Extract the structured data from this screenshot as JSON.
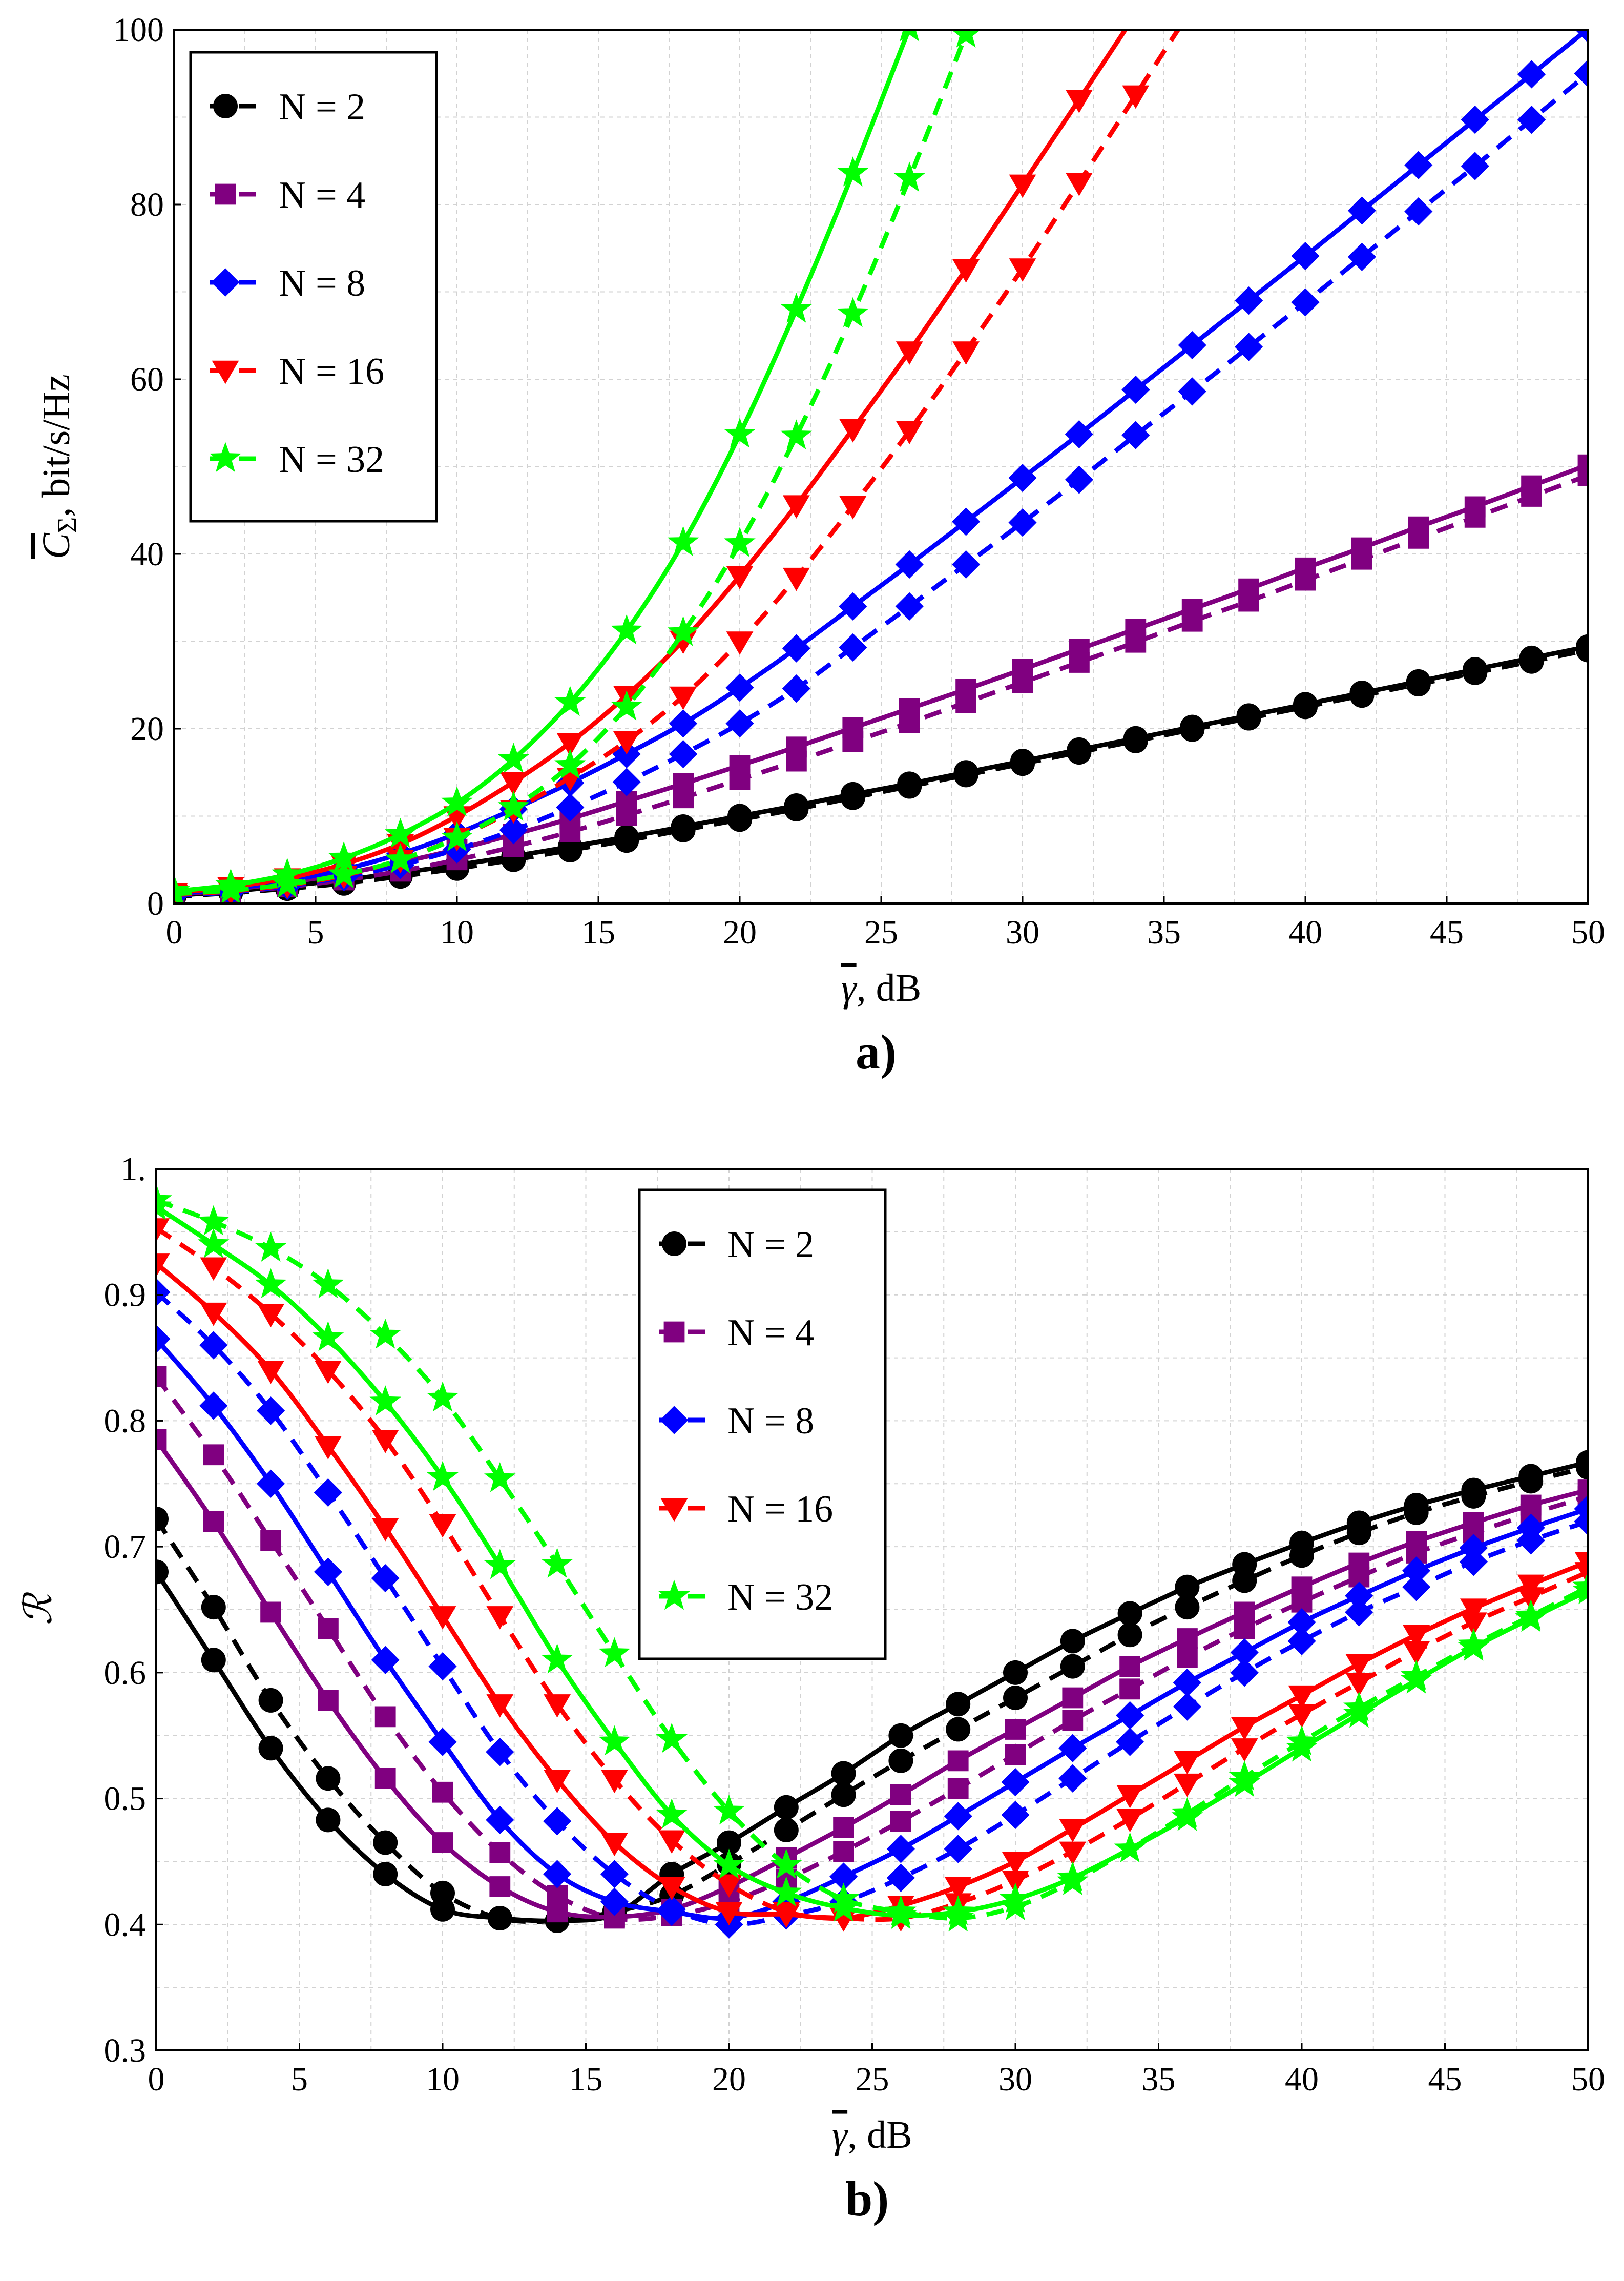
{
  "colors": {
    "N2": "#000000",
    "N4": "#800080",
    "N8": "#0000ff",
    "N16": "#ff0000",
    "N32": "#00ff00"
  },
  "chart_data": [
    {
      "type": "line",
      "panel_label": "a)",
      "xlabel_symbol": "γ",
      "xlabel_unit": ", dB",
      "ylabel_symbol": "C",
      "ylabel_sub": "Σ",
      "ylabel_unit": ", bit/s/Hz",
      "xlim": [
        0,
        50
      ],
      "ylim": [
        0,
        100
      ],
      "xticks": [
        "0",
        "5",
        "10",
        "15",
        "20",
        "25",
        "30",
        "35",
        "40",
        "45",
        "50"
      ],
      "yticks": [
        "0",
        "20",
        "40",
        "60",
        "80",
        "100"
      ],
      "grid": true,
      "legend_position": "top-left",
      "line_styles": [
        "solid",
        "dashed"
      ],
      "x": [
        0,
        2,
        4,
        6,
        8,
        10,
        12,
        14,
        16,
        18,
        20,
        22,
        24,
        26,
        28,
        30,
        32,
        34,
        36,
        38,
        40,
        42,
        44,
        46,
        48,
        50
      ],
      "series": [
        {
          "name": "N = 2",
          "color": "#000000",
          "marker": "circle",
          "solid": [
            0.9,
            1.4,
            2.0,
            2.7,
            3.5,
            4.4,
            5.4,
            6.5,
            7.6,
            8.8,
            10.0,
            11.2,
            12.5,
            13.7,
            15.0,
            16.3,
            17.6,
            18.9,
            20.2,
            21.5,
            22.8,
            24.1,
            25.4,
            26.8,
            28.1,
            29.4
          ],
          "dashed": [
            0.8,
            1.2,
            1.7,
            2.3,
            3.1,
            4.0,
            5.0,
            6.1,
            7.2,
            8.4,
            9.6,
            10.8,
            12.1,
            13.4,
            14.7,
            16.0,
            17.3,
            18.6,
            19.9,
            21.2,
            22.5,
            23.8,
            25.1,
            26.4,
            27.7,
            29.0
          ]
        },
        {
          "name": "N = 4",
          "color": "#800080",
          "marker": "square",
          "solid": [
            1.0,
            1.6,
            2.4,
            3.4,
            4.7,
            6.2,
            7.9,
            9.7,
            11.7,
            13.7,
            15.8,
            17.9,
            20.1,
            22.3,
            24.5,
            26.8,
            29.1,
            31.4,
            33.7,
            36.0,
            38.4,
            40.7,
            43.1,
            45.4,
            47.8,
            50.2
          ],
          "dashed": [
            0.9,
            1.3,
            1.9,
            2.7,
            3.7,
            5.0,
            6.5,
            8.2,
            10.1,
            12.1,
            14.2,
            16.3,
            18.5,
            20.7,
            23.0,
            25.3,
            27.6,
            29.9,
            32.3,
            34.6,
            37.0,
            39.4,
            41.8,
            44.2,
            46.6,
            49.0
          ]
        },
        {
          "name": "N = 8",
          "color": "#0000ff",
          "marker": "diamond",
          "solid": [
            1.1,
            1.7,
            2.6,
            3.9,
            5.7,
            8.0,
            10.8,
            13.8,
            17.1,
            20.6,
            24.7,
            29.2,
            34.0,
            38.8,
            43.7,
            48.7,
            53.7,
            58.8,
            63.9,
            69.0,
            74.1,
            79.3,
            84.5,
            89.7,
            94.9,
            100.1
          ],
          "dashed": [
            0.9,
            1.3,
            2.0,
            3.0,
            4.4,
            6.2,
            8.4,
            11.0,
            13.9,
            17.1,
            20.6,
            24.6,
            29.3,
            34.0,
            38.8,
            43.6,
            48.5,
            53.6,
            58.6,
            63.7,
            68.8,
            74.0,
            79.2,
            84.4,
            89.7,
            95.0
          ]
        },
        {
          "name": "N = 16",
          "color": "#ff0000",
          "marker": "triangle-down",
          "solid": [
            1.2,
            1.9,
            2.9,
            4.5,
            6.8,
            10.0,
            13.9,
            18.4,
            23.8,
            30.1,
            37.5,
            45.6,
            54.3,
            63.2,
            72.6,
            82.3,
            92.0,
            101.8
          ],
          "dashed": [
            1.0,
            1.4,
            2.1,
            3.2,
            5.0,
            7.5,
            10.7,
            14.4,
            18.6,
            23.7,
            30.0,
            37.3,
            45.5,
            54.1,
            63.2,
            72.7,
            82.5,
            92.5,
            102.5
          ]
        },
        {
          "name": "N = 32",
          "color": "#00ff00",
          "marker": "star",
          "solid": [
            1.4,
            2.1,
            3.3,
            5.2,
            7.9,
            11.5,
            16.5,
            23.0,
            31.2,
            41.3,
            53.7,
            68.0,
            83.6,
            100.2
          ],
          "dashed": [
            1.1,
            1.5,
            2.2,
            3.3,
            5.0,
            7.5,
            11.0,
            15.8,
            22.5,
            31.0,
            41.2,
            53.5,
            67.5,
            83.0,
            99.5
          ]
        }
      ],
      "legend": [
        "N = 2",
        "N = 4",
        "N = 8",
        "N = 16",
        "N = 32"
      ]
    },
    {
      "type": "line",
      "panel_label": "b)",
      "xlabel_symbol": "γ",
      "xlabel_unit": ", dB",
      "ylabel": "ℛ",
      "xlim": [
        0,
        50
      ],
      "ylim": [
        0.3,
        1.0
      ],
      "xticks": [
        "0",
        "5",
        "10",
        "15",
        "20",
        "25",
        "30",
        "35",
        "40",
        "45",
        "50"
      ],
      "yticks": [
        "0.3",
        "0.4",
        "0.5",
        "0.6",
        "0.7",
        "0.8",
        "0.9",
        "1."
      ],
      "grid": true,
      "legend_position": "top-center",
      "line_styles": [
        "solid",
        "dashed"
      ],
      "x": [
        0,
        2,
        4,
        6,
        8,
        10,
        12,
        14,
        16,
        18,
        20,
        22,
        24,
        26,
        28,
        30,
        32,
        34,
        36,
        38,
        40,
        42,
        44,
        46,
        48,
        50
      ],
      "series": [
        {
          "name": "N = 2",
          "color": "#000000",
          "marker": "circle",
          "solid": [
            0.68,
            0.61,
            0.54,
            0.483,
            0.44,
            0.412,
            0.405,
            0.403,
            0.408,
            0.44,
            0.465,
            0.493,
            0.52,
            0.55,
            0.575,
            0.6,
            0.625,
            0.647,
            0.668,
            0.686,
            0.703,
            0.719,
            0.733,
            0.745,
            0.756,
            0.767
          ],
          "dashed": [
            0.722,
            0.652,
            0.578,
            0.516,
            0.465,
            0.425,
            0.405,
            0.403,
            0.41,
            0.423,
            0.448,
            0.475,
            0.503,
            0.53,
            0.555,
            0.58,
            0.605,
            0.63,
            0.652,
            0.673,
            0.693,
            0.711,
            0.727,
            0.74,
            0.752,
            0.763
          ]
        },
        {
          "name": "N = 4",
          "color": "#800080",
          "marker": "square",
          "solid": [
            0.785,
            0.72,
            0.648,
            0.578,
            0.516,
            0.465,
            0.43,
            0.41,
            0.406,
            0.412,
            0.43,
            0.453,
            0.477,
            0.503,
            0.53,
            0.555,
            0.58,
            0.605,
            0.627,
            0.648,
            0.668,
            0.687,
            0.704,
            0.719,
            0.733,
            0.745
          ],
          "dashed": [
            0.835,
            0.773,
            0.705,
            0.635,
            0.565,
            0.505,
            0.457,
            0.423,
            0.405,
            0.407,
            0.418,
            0.436,
            0.458,
            0.482,
            0.508,
            0.535,
            0.562,
            0.587,
            0.612,
            0.635,
            0.656,
            0.676,
            0.695,
            0.711,
            0.726,
            0.74
          ]
        },
        {
          "name": "N = 8",
          "color": "#0000ff",
          "marker": "diamond",
          "solid": [
            0.865,
            0.812,
            0.75,
            0.68,
            0.61,
            0.545,
            0.483,
            0.44,
            0.418,
            0.41,
            0.405,
            0.418,
            0.438,
            0.46,
            0.486,
            0.513,
            0.54,
            0.566,
            0.592,
            0.616,
            0.64,
            0.661,
            0.681,
            0.699,
            0.715,
            0.73
          ],
          "dashed": [
            0.902,
            0.86,
            0.808,
            0.743,
            0.675,
            0.605,
            0.537,
            0.482,
            0.44,
            0.412,
            0.4,
            0.407,
            0.418,
            0.437,
            0.46,
            0.487,
            0.516,
            0.545,
            0.573,
            0.6,
            0.625,
            0.648,
            0.668,
            0.688,
            0.705,
            0.72
          ]
        },
        {
          "name": "N = 16",
          "color": "#ff0000",
          "marker": "triangle-down",
          "solid": [
            0.925,
            0.886,
            0.84,
            0.78,
            0.715,
            0.645,
            0.575,
            0.515,
            0.465,
            0.43,
            0.41,
            0.408,
            0.405,
            0.415,
            0.43,
            0.45,
            0.476,
            0.503,
            0.53,
            0.557,
            0.582,
            0.607,
            0.63,
            0.651,
            0.67,
            0.688
          ],
          "dashed": [
            0.953,
            0.922,
            0.885,
            0.84,
            0.785,
            0.718,
            0.645,
            0.575,
            0.515,
            0.467,
            0.432,
            0.41,
            0.405,
            0.405,
            0.417,
            0.435,
            0.458,
            0.484,
            0.512,
            0.54,
            0.567,
            0.592,
            0.617,
            0.64,
            0.66,
            0.68
          ]
        },
        {
          "name": "N = 32",
          "color": "#00ff00",
          "marker": "star",
          "solid": [
            0.97,
            0.94,
            0.908,
            0.866,
            0.815,
            0.755,
            0.685,
            0.61,
            0.545,
            0.487,
            0.447,
            0.425,
            0.413,
            0.407,
            0.41,
            0.42,
            0.437,
            0.46,
            0.485,
            0.512,
            0.54,
            0.567,
            0.594,
            0.62,
            0.643,
            0.665
          ],
          "dashed": [
            0.975,
            0.958,
            0.937,
            0.908,
            0.868,
            0.818,
            0.754,
            0.686,
            0.615,
            0.547,
            0.49,
            0.447,
            0.42,
            0.41,
            0.405,
            0.414,
            0.434,
            0.46,
            0.488,
            0.517,
            0.545,
            0.572,
            0.597,
            0.622,
            0.645,
            0.668
          ]
        }
      ],
      "legend": [
        "N = 2",
        "N = 4",
        "N = 8",
        "N = 16",
        "N = 32"
      ]
    }
  ]
}
